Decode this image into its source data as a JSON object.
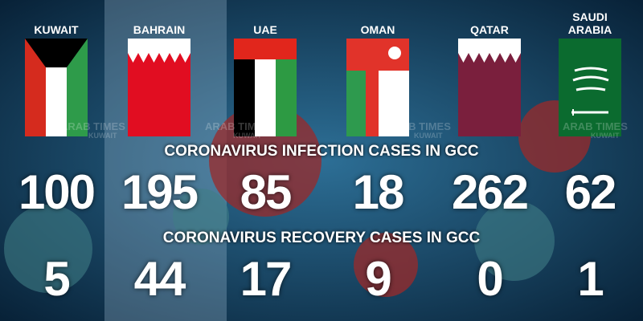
{
  "headings": {
    "infections": "CORONAVIRUS INFECTION CASES IN GCC",
    "recoveries": "CORONAVIRUS RECOVERY CASES IN GCC"
  },
  "watermark": {
    "brand": "ARAB TIMES",
    "place": "KUWAIT"
  },
  "countries": [
    {
      "name": "KUWAIT",
      "infections": 100,
      "recoveries": 5
    },
    {
      "name": "BAHRAIN",
      "infections": 195,
      "recoveries": 44
    },
    {
      "name": "UAE",
      "infections": 85,
      "recoveries": 17
    },
    {
      "name": "OMAN",
      "infections": 18,
      "recoveries": 9
    },
    {
      "name": "QATAR",
      "infections": 262,
      "recoveries": 0
    },
    {
      "name": "SAUDI ARABIA",
      "infections": 62,
      "recoveries": 1
    }
  ]
}
